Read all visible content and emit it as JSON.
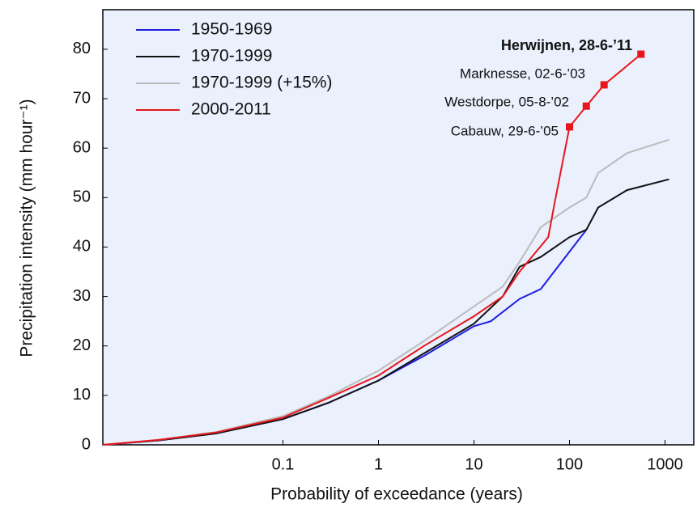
{
  "chart_data": {
    "type": "line",
    "x_label": "Probability of exceedance (years)",
    "y_label": "Precipitation intensity  (mm hour⁻¹)",
    "xscale": "log",
    "xlim": [
      0.0013,
      2000
    ],
    "xticks": [
      0.1,
      1,
      10,
      100,
      1000
    ],
    "ylim": [
      0,
      88
    ],
    "yticks": [
      0,
      10,
      20,
      30,
      40,
      50,
      60,
      70,
      80
    ],
    "legend": "upper left",
    "series": [
      {
        "name": "1950-1969",
        "color": "#1f1fe0",
        "x": [
          0.0013,
          0.005,
          0.02,
          0.1,
          0.3,
          1,
          3,
          10,
          15,
          30,
          50,
          150
        ],
        "values": [
          0,
          0.9,
          2.3,
          5.2,
          8.5,
          13,
          18,
          24,
          25,
          29.5,
          31.5,
          43.5
        ]
      },
      {
        "name": "1970-1999",
        "color": "#111111",
        "x": [
          0.0013,
          0.005,
          0.02,
          0.1,
          0.3,
          1,
          3,
          10,
          20,
          30,
          50,
          100,
          150,
          200,
          400,
          1100
        ],
        "values": [
          0,
          0.9,
          2.3,
          5.2,
          8.5,
          13,
          18.5,
          24.5,
          30,
          36,
          38,
          42,
          43.5,
          48,
          51.5,
          53.7
        ]
      },
      {
        "name": "1970-1999 (+15%)",
        "color": "#bbbbbb",
        "x": [
          0.0013,
          0.005,
          0.02,
          0.1,
          0.3,
          1,
          3,
          10,
          20,
          30,
          50,
          100,
          150,
          200,
          400,
          1100
        ],
        "values": [
          0,
          1,
          2.6,
          5.8,
          9.8,
          15,
          21,
          28,
          32,
          37,
          44,
          48,
          50,
          55,
          59,
          61.7
        ]
      },
      {
        "name": "2000-2011",
        "color": "#e8161c",
        "x": [
          0.0013,
          0.005,
          0.02,
          0.1,
          0.3,
          1,
          3,
          10,
          20,
          30,
          60,
          70,
          100,
          150,
          230,
          560
        ],
        "values": [
          0,
          1,
          2.5,
          5.5,
          9.5,
          14,
          20,
          26,
          30,
          35,
          42,
          49,
          64.3,
          68.5,
          72.8,
          79
        ]
      }
    ],
    "annotations": [
      "Herwijnen, 28-6-’11",
      "Marknesse, 02-6-’03",
      "Westdorpe, 05-8-’02",
      "Cabauw, 29-6-’05"
    ]
  }
}
